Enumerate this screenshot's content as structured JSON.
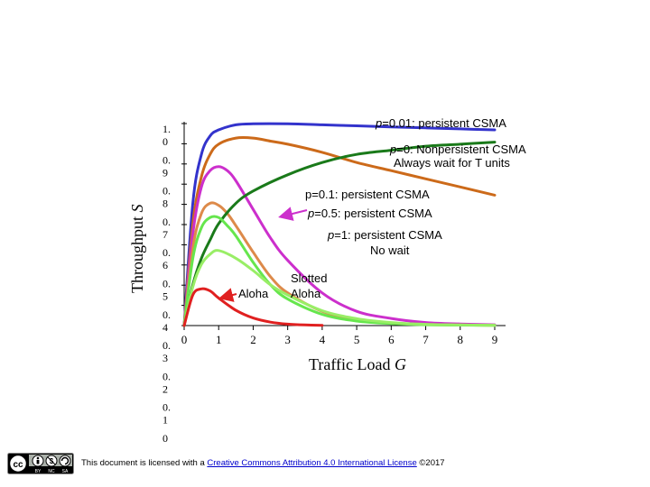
{
  "chart_data": {
    "type": "line",
    "xlabel_text": "Traffic Load ",
    "xlabel_var": "G",
    "ylabel_text": "Throughput ",
    "ylabel_var": "S",
    "xlim": [
      0,
      9
    ],
    "ylim": [
      0,
      1
    ],
    "x_ticks": [
      "0",
      "1",
      "2",
      "3",
      "4",
      "5",
      "6",
      "7",
      "8",
      "9"
    ],
    "y_tick_labels": [
      {
        "lines": [
          "1.",
          "0"
        ]
      },
      {
        "lines": [
          "0.",
          "9"
        ]
      },
      {
        "lines": [
          "0.",
          "8"
        ]
      },
      {
        "lines": [
          "0.",
          "7"
        ]
      },
      {
        "lines": [
          "0.",
          "6"
        ]
      },
      {
        "lines": [
          "0.",
          "5"
        ]
      },
      {
        "lines": [
          "0.",
          "4"
        ]
      },
      {
        "lines": [
          "0.",
          "3"
        ]
      },
      {
        "lines": [
          "0.",
          "2"
        ]
      },
      {
        "lines": [
          "0.",
          "1"
        ]
      },
      {
        "lines": [
          "0"
        ]
      }
    ],
    "series": [
      {
        "name": "p=0.01 persistent CSMA",
        "color": "#3333cc",
        "x": [
          0,
          0.25,
          0.5,
          0.75,
          1,
          1.5,
          2,
          3,
          4,
          5,
          6,
          7,
          8,
          9
        ],
        "y": [
          0,
          0.6,
          0.84,
          0.93,
          0.96,
          0.985,
          0.99,
          0.99,
          0.985,
          0.98,
          0.975,
          0.97,
          0.965,
          0.96
        ]
      },
      {
        "name": "p=0 Nonpersistent CSMA",
        "color": "#cc6a1a",
        "x": [
          0,
          0.25,
          0.5,
          0.75,
          1,
          1.5,
          2,
          2.5,
          3,
          4,
          5,
          6,
          7,
          8,
          9
        ],
        "y": [
          0,
          0.5,
          0.73,
          0.84,
          0.89,
          0.92,
          0.92,
          0.905,
          0.89,
          0.85,
          0.8,
          0.76,
          0.72,
          0.68,
          0.64
        ]
      },
      {
        "name": "p=0.1 persistent CSMA",
        "color": "#cc2fcc",
        "x": [
          0,
          0.25,
          0.5,
          0.75,
          1,
          1.25,
          1.5,
          2,
          2.5,
          3,
          4,
          5,
          6,
          7,
          8,
          9
        ],
        "y": [
          0,
          0.45,
          0.68,
          0.76,
          0.78,
          0.76,
          0.71,
          0.57,
          0.43,
          0.32,
          0.16,
          0.07,
          0.035,
          0.015,
          0.008,
          0.004
        ]
      },
      {
        "name": "p=0.5 persistent CSMA",
        "color": "#dd8a4a",
        "x": [
          0,
          0.25,
          0.5,
          0.75,
          1,
          1.25,
          1.5,
          2,
          2.5,
          3,
          4,
          5,
          6,
          7,
          8,
          9
        ],
        "y": [
          0,
          0.38,
          0.55,
          0.6,
          0.59,
          0.55,
          0.49,
          0.36,
          0.24,
          0.16,
          0.07,
          0.03,
          0.012,
          0.006,
          0.003,
          0.001
        ]
      },
      {
        "name": "Nonpersistent CSMA always wait for T units",
        "color": "#1a7a1a",
        "x": [
          0,
          0.25,
          0.5,
          0.75,
          1,
          1.5,
          2,
          3,
          4,
          5,
          6,
          7,
          8,
          9
        ],
        "y": [
          0,
          0.2,
          0.33,
          0.42,
          0.5,
          0.6,
          0.66,
          0.74,
          0.8,
          0.84,
          0.86,
          0.88,
          0.89,
          0.9
        ]
      },
      {
        "name": "p=1 persistent CSMA no wait",
        "color": "#66e64d",
        "x": [
          0,
          0.25,
          0.5,
          0.75,
          1,
          1.25,
          1.5,
          2,
          2.5,
          3,
          4,
          5,
          6,
          7,
          8,
          9
        ],
        "y": [
          0,
          0.33,
          0.48,
          0.53,
          0.53,
          0.49,
          0.44,
          0.31,
          0.2,
          0.13,
          0.055,
          0.022,
          0.01,
          0.004,
          0.002,
          0.001
        ]
      },
      {
        "name": "Slotted Aloha",
        "color": "#99ee66",
        "x": [
          0,
          0.25,
          0.5,
          0.75,
          1,
          1.5,
          2,
          2.5,
          3,
          4,
          5,
          6,
          7,
          8,
          9
        ],
        "y": [
          0,
          0.19,
          0.3,
          0.35,
          0.368,
          0.33,
          0.27,
          0.2,
          0.15,
          0.073,
          0.034,
          0.015,
          0.006,
          0.003,
          0.001
        ]
      },
      {
        "name": "Aloha",
        "color": "#e02020",
        "x": [
          0,
          0.25,
          0.5,
          0.75,
          1,
          1.5,
          2,
          2.5,
          3,
          3.5,
          4
        ],
        "y": [
          0,
          0.15,
          0.18,
          0.17,
          0.135,
          0.075,
          0.037,
          0.017,
          0.007,
          0.003,
          0.001
        ]
      }
    ],
    "annotations": [
      {
        "id": "p001",
        "var": "p",
        "rest": "=0.01: persistent CSMA"
      },
      {
        "id": "p0",
        "var": "p",
        "rest": "=0: Nonpersistent CSMA"
      },
      {
        "id": "p0b",
        "text": "Always wait for T units"
      },
      {
        "id": "p01",
        "text": "p=0.1: persistent CSMA"
      },
      {
        "id": "p05",
        "var": "p",
        "rest": "=0.5: persistent CSMA"
      },
      {
        "id": "p1",
        "var": "p",
        "rest": "=1: persistent CSMA"
      },
      {
        "id": "p1b",
        "text": "No wait"
      },
      {
        "id": "slotted1",
        "text": "Slotted"
      },
      {
        "id": "slotted2",
        "text": "Aloha"
      },
      {
        "id": "aloha",
        "text": "Aloha"
      }
    ]
  },
  "footer": {
    "license_prefix": "This document is licensed with a ",
    "license_link": "Creative Commons Attribution 4.0 International License",
    "license_suffix": " ©2017",
    "badge_cc": "cc",
    "badge_by": "BY",
    "badge_nc": "NC",
    "badge_sa": "SA"
  }
}
